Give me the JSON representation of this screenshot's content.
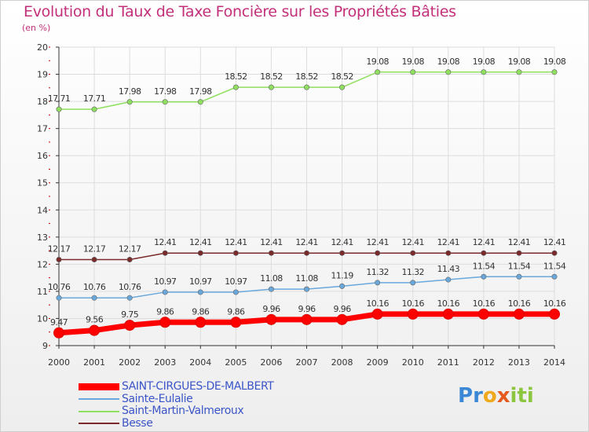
{
  "title": "Evolution du Taux de Taxe Foncière sur les Propriétés Bâties",
  "subtitle": "(en %)",
  "logo": {
    "p": "P",
    "r": "r",
    "o": "o",
    "x": "x",
    "i1": "i",
    "t": "t",
    "i2": "i"
  },
  "chart_data": {
    "type": "line",
    "title": "Evolution du Taux de Taxe Foncière sur les Propriétés Bâties",
    "ylabel": "(en %)",
    "xlabel": "",
    "ylim": [
      9,
      20
    ],
    "yticks": [
      9,
      10,
      11,
      12,
      13,
      14,
      15,
      16,
      17,
      18,
      19,
      20
    ],
    "x": [
      "2000",
      "2001",
      "2002",
      "2003",
      "2004",
      "2005",
      "2006",
      "2007",
      "2008",
      "2009",
      "2010",
      "2011",
      "2012",
      "2013",
      "2014"
    ],
    "series": [
      {
        "name": "SAINT-CIRGUES-DE-MALBERT",
        "color": "#ff0000",
        "values": [
          9.47,
          9.56,
          9.75,
          9.86,
          9.86,
          9.86,
          9.96,
          9.96,
          9.96,
          10.16,
          10.16,
          10.16,
          10.16,
          10.16,
          10.16
        ]
      },
      {
        "name": "Sainte-Eulalie",
        "color": "#6aa8dc",
        "values": [
          10.76,
          10.76,
          10.76,
          10.97,
          10.97,
          10.97,
          11.08,
          11.08,
          11.19,
          11.32,
          11.32,
          11.43,
          11.54,
          11.54,
          11.54
        ]
      },
      {
        "name": "Saint-Martin-Valmeroux",
        "color": "#90e060",
        "values": [
          17.71,
          17.71,
          17.98,
          17.98,
          17.98,
          18.52,
          18.52,
          18.52,
          18.52,
          19.08,
          19.08,
          19.08,
          19.08,
          19.08,
          19.08
        ]
      },
      {
        "name": "Besse",
        "color": "#7a2a2a",
        "values": [
          12.17,
          12.17,
          12.17,
          12.41,
          12.41,
          12.41,
          12.41,
          12.41,
          12.41,
          12.41,
          12.41,
          12.41,
          12.41,
          12.41,
          12.41
        ]
      }
    ],
    "data_labels": [
      [
        "9.47",
        "9.56",
        "9.75",
        "9.86",
        "9.86",
        "9.86",
        "9.96",
        "9.96",
        "9.96",
        "10.16",
        "10.16",
        "10.16",
        "10.16",
        "10.16",
        "10.16"
      ],
      [
        "10.76",
        "10.76",
        "10.76",
        "10.97",
        "10.97",
        "10.97",
        "11.08",
        "11.08",
        "11.19",
        "11.32",
        "11.32",
        "11.43",
        "11.54",
        "11.54",
        "11.54"
      ],
      [
        "17.71",
        "17.71",
        "17.98",
        "17.98",
        "17.98",
        "18.52",
        "18.52",
        "18.52",
        "18.52",
        "19.08",
        "19.08",
        "19.08",
        "19.08",
        "19.08",
        "19.08"
      ],
      [
        "12.17",
        "12.17",
        "12.17",
        "12.41",
        "12.41",
        "12.41",
        "12.41",
        "12.41",
        "12.41",
        "12.41",
        "12.41",
        "12.41",
        "12.41",
        "12.41",
        "12.41"
      ]
    ],
    "grid": true,
    "legend_position": "bottom-left"
  }
}
